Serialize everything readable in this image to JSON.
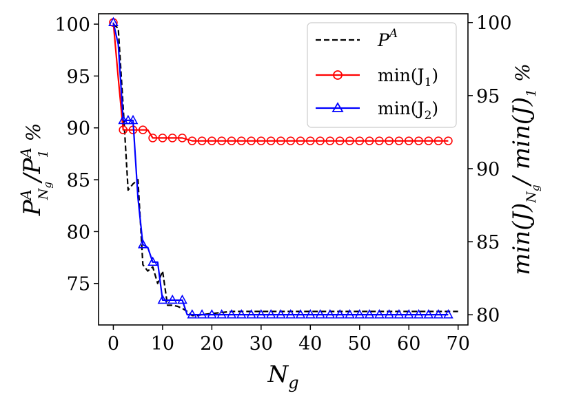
{
  "chart_data": {
    "type": "line",
    "xlabel": "N_g",
    "ylabel_left": "P^A_{N_g} / P^A_1 %",
    "ylabel_right": "min(J)_{N_g} / min(J)_1 %",
    "xlim": [
      -3,
      72
    ],
    "ylim_left": [
      71,
      101
    ],
    "ylim_right": [
      79.3,
      100.6
    ],
    "xticks": [
      0,
      10,
      20,
      30,
      40,
      50,
      60,
      70
    ],
    "yticks_left": [
      75,
      80,
      85,
      90,
      95,
      100
    ],
    "yticks_right": [
      80,
      85,
      90,
      95,
      100
    ],
    "legend_position": "top-right",
    "series": [
      {
        "name": "P^A",
        "label_main": "P",
        "label_sup": "A",
        "axis": "left",
        "color": "#000000",
        "style": "dashed",
        "marker": "none",
        "points": [
          [
            0,
            100
          ],
          [
            1,
            99.6
          ],
          [
            2,
            92.0
          ],
          [
            3,
            84.0
          ],
          [
            4,
            84.6
          ],
          [
            5,
            85.0
          ],
          [
            6,
            76.8
          ],
          [
            7,
            76.2
          ],
          [
            8,
            76.6
          ],
          [
            9,
            75.0
          ],
          [
            10,
            76.2
          ],
          [
            11,
            72.9
          ],
          [
            12,
            72.9
          ],
          [
            13,
            72.8
          ],
          [
            14,
            72.6
          ],
          [
            15,
            72.3
          ],
          [
            16,
            71.9
          ],
          [
            17,
            71.9
          ],
          [
            18,
            72.0
          ],
          [
            20,
            72.1
          ],
          [
            22,
            72.2
          ],
          [
            24,
            72.3
          ],
          [
            30,
            72.3
          ],
          [
            40,
            72.3
          ],
          [
            50,
            72.3
          ],
          [
            60,
            72.3
          ],
          [
            70,
            72.3
          ]
        ]
      },
      {
        "name": "min(J_1)",
        "label_main": "min(J",
        "label_sub": "1",
        "label_close": ")",
        "axis": "right",
        "color": "#ff0000",
        "style": "solid",
        "marker": "circle",
        "points": [
          [
            0,
            100
          ],
          [
            1,
            96.2
          ],
          [
            2,
            92.65
          ],
          [
            3,
            92.65
          ],
          [
            4,
            92.65
          ],
          [
            5,
            92.65
          ],
          [
            6,
            92.65
          ],
          [
            7,
            92.65
          ],
          [
            8,
            92.1
          ],
          [
            9,
            92.1
          ],
          [
            10,
            92.1
          ],
          [
            11,
            92.1
          ],
          [
            12,
            92.1
          ],
          [
            13,
            92.1
          ],
          [
            14,
            92.1
          ],
          [
            15,
            92.0
          ],
          [
            16,
            91.9
          ],
          [
            17,
            91.9
          ],
          [
            18,
            91.9
          ],
          [
            19,
            91.9
          ],
          [
            20,
            91.9
          ],
          [
            21,
            91.9
          ],
          [
            22,
            91.9
          ],
          [
            23,
            91.9
          ],
          [
            24,
            91.9
          ],
          [
            25,
            91.9
          ],
          [
            26,
            91.9
          ],
          [
            27,
            91.9
          ],
          [
            28,
            91.9
          ],
          [
            29,
            91.9
          ],
          [
            30,
            91.9
          ],
          [
            31,
            91.9
          ],
          [
            32,
            91.9
          ],
          [
            33,
            91.9
          ],
          [
            34,
            91.9
          ],
          [
            35,
            91.9
          ],
          [
            36,
            91.9
          ],
          [
            37,
            91.9
          ],
          [
            38,
            91.9
          ],
          [
            39,
            91.9
          ],
          [
            40,
            91.9
          ],
          [
            41,
            91.9
          ],
          [
            42,
            91.9
          ],
          [
            43,
            91.9
          ],
          [
            44,
            91.9
          ],
          [
            45,
            91.9
          ],
          [
            46,
            91.9
          ],
          [
            47,
            91.9
          ],
          [
            48,
            91.9
          ],
          [
            49,
            91.9
          ],
          [
            50,
            91.9
          ],
          [
            51,
            91.9
          ],
          [
            52,
            91.9
          ],
          [
            53,
            91.9
          ],
          [
            54,
            91.9
          ],
          [
            55,
            91.9
          ],
          [
            56,
            91.9
          ],
          [
            57,
            91.9
          ],
          [
            58,
            91.9
          ],
          [
            59,
            91.9
          ],
          [
            60,
            91.9
          ],
          [
            61,
            91.9
          ],
          [
            62,
            91.9
          ],
          [
            63,
            91.9
          ],
          [
            64,
            91.9
          ],
          [
            65,
            91.9
          ],
          [
            66,
            91.9
          ],
          [
            67,
            91.9
          ],
          [
            68,
            91.9
          ]
        ],
        "marker_x": [
          0,
          2,
          4,
          6,
          8,
          10,
          12,
          14,
          16,
          18,
          20,
          22,
          24,
          26,
          28,
          30,
          32,
          34,
          36,
          38,
          40,
          42,
          44,
          46,
          48,
          50,
          52,
          54,
          56,
          58,
          60,
          62,
          64,
          66,
          68
        ]
      },
      {
        "name": "min(J_2)",
        "label_main": "min(J",
        "label_sub": "2",
        "label_close": ")",
        "axis": "right",
        "color": "#0000ff",
        "style": "solid",
        "marker": "triangle",
        "points": [
          [
            0,
            100
          ],
          [
            1,
            98.5
          ],
          [
            2,
            93.3
          ],
          [
            3,
            93.3
          ],
          [
            4,
            93.3
          ],
          [
            5,
            88.0
          ],
          [
            6,
            84.8
          ],
          [
            7,
            84.6
          ],
          [
            8,
            83.6
          ],
          [
            9,
            83.6
          ],
          [
            10,
            81.0
          ],
          [
            11,
            81.0
          ],
          [
            12,
            81.0
          ],
          [
            13,
            81.0
          ],
          [
            14,
            81.0
          ],
          [
            15,
            80.0
          ],
          [
            16,
            80.0
          ],
          [
            17,
            80.0
          ],
          [
            18,
            80.0
          ],
          [
            19,
            80.0
          ],
          [
            20,
            80.0
          ],
          [
            21,
            80.0
          ],
          [
            22,
            80.0
          ],
          [
            23,
            80.0
          ],
          [
            24,
            80.0
          ],
          [
            25,
            80.0
          ],
          [
            26,
            80.0
          ],
          [
            27,
            80.0
          ],
          [
            28,
            80.0
          ],
          [
            29,
            80.0
          ],
          [
            30,
            80.0
          ],
          [
            31,
            80.0
          ],
          [
            32,
            80.0
          ],
          [
            33,
            80.0
          ],
          [
            34,
            80.0
          ],
          [
            35,
            80.0
          ],
          [
            36,
            80.0
          ],
          [
            37,
            80.0
          ],
          [
            38,
            80.0
          ],
          [
            39,
            80.0
          ],
          [
            40,
            80.0
          ],
          [
            41,
            80.0
          ],
          [
            42,
            80.0
          ],
          [
            43,
            80.0
          ],
          [
            44,
            80.0
          ],
          [
            45,
            80.0
          ],
          [
            46,
            80.0
          ],
          [
            47,
            80.0
          ],
          [
            48,
            80.0
          ],
          [
            49,
            80.0
          ],
          [
            50,
            80.0
          ],
          [
            51,
            80.0
          ],
          [
            52,
            80.0
          ],
          [
            53,
            80.0
          ],
          [
            54,
            80.0
          ],
          [
            55,
            80.0
          ],
          [
            56,
            80.0
          ],
          [
            57,
            80.0
          ],
          [
            58,
            80.0
          ],
          [
            59,
            80.0
          ],
          [
            60,
            80.0
          ],
          [
            61,
            80.0
          ],
          [
            62,
            80.0
          ],
          [
            63,
            80.0
          ],
          [
            64,
            80.0
          ],
          [
            65,
            80.0
          ],
          [
            66,
            80.0
          ],
          [
            67,
            80.0
          ],
          [
            68,
            80.0
          ]
        ],
        "marker_x": [
          0,
          2,
          3,
          4,
          6,
          8,
          10,
          12,
          14,
          16,
          18,
          20,
          22,
          24,
          26,
          28,
          30,
          32,
          34,
          36,
          38,
          40,
          42,
          44,
          46,
          48,
          50,
          52,
          54,
          56,
          58,
          60,
          62,
          64,
          66,
          68
        ]
      }
    ]
  }
}
